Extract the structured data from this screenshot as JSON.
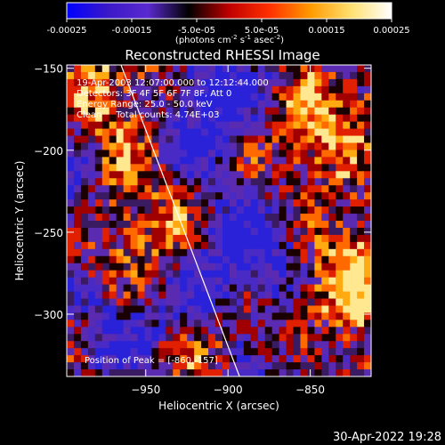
{
  "chart_data": {
    "type": "heatmap",
    "title": "Reconstructed RHESSI Image",
    "xlabel": "Heliocentric X (arcsec)",
    "ylabel": "Heliocentric Y (arcsec)",
    "xlim": [
      -998,
      -813
    ],
    "ylim": [
      -338,
      -148
    ],
    "xticks": [
      -950,
      -900,
      -850
    ],
    "yticks": [
      -150,
      -200,
      -250,
      -300
    ],
    "colorbar": {
      "range": [
        -0.00025,
        0.00025
      ],
      "ticks": [
        "-0.00025",
        "-0.00015",
        "-5.0e-05",
        "5.0e-05",
        "0.00015",
        "0.00025"
      ],
      "units_prefix": "(photons cm",
      "units_exp1": "-2",
      "units_mid": " s",
      "units_exp2": "-1",
      "units_mid2": " asec",
      "units_exp3": "-2",
      "units_suffix": ")",
      "colors": [
        "#0000ff",
        "#3a18c8",
        "#5a2ad0",
        "#000000",
        "#c00000",
        "#ff3000",
        "#ff9a00",
        "#ffe070",
        "#ffffff"
      ]
    },
    "annotations": [
      "19-Apr-2003 12:07:00.000 to 12:12:44.000",
      "Detectors: 3F 4F 5F 6F 7F 8F, Att 0",
      "Energy Range: 25.0 - 50.0 keV",
      "Clean     Total counts: 4.74E+03"
    ],
    "peak_label": "Position of Peak = [-860,-157]",
    "limb_line": [
      [
        -965,
        -148
      ],
      [
        -893,
        -338
      ]
    ],
    "grid": false
  },
  "footer": {
    "timestamp": "30-Apr-2022 19:28"
  }
}
